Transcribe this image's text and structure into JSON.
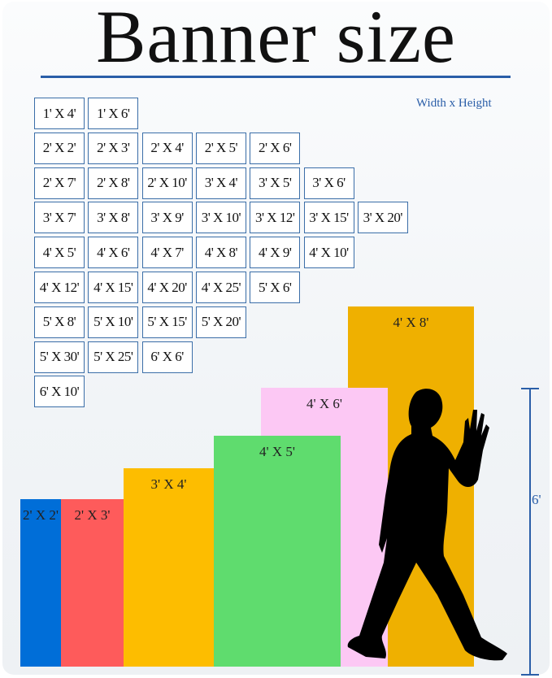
{
  "title": "Banner size",
  "legend": "Width x Height",
  "grid_rows": [
    [
      "1' X 4'",
      "1' X 6'"
    ],
    [
      "2' X 2'",
      "2' X 3'",
      "2' X 4'",
      "2' X 5'",
      "2' X 6'"
    ],
    [
      "2' X 7'",
      "2' X 8'",
      "2' X 10'",
      "3' X 4'",
      "3' X 5'",
      "3' X 6'"
    ],
    [
      "3' X 7'",
      "3' X 8'",
      "3' X 9'",
      "3' X 10'",
      "3' X 12'",
      "3' X 15'",
      "3' X 20'"
    ],
    [
      "4' X 5'",
      "4' X 6'",
      "4' X 7'",
      "4' X 8'",
      "4' X 9'",
      "4' X 10'"
    ],
    [
      "4' X 12'",
      "4' X 15'",
      "4' X 20'",
      "4' X 25'",
      "5' X 6'"
    ],
    [
      "5' X 8'",
      "5' X 10'",
      "5' X 15'",
      "5' X 20'"
    ],
    [
      "5' X 30'",
      "5' X 25'",
      "6' X 6'"
    ],
    [
      "6' X 10'"
    ]
  ],
  "bars": [
    {
      "label": "4' X 8'",
      "color": "#efb000"
    },
    {
      "label": "4' X 6'",
      "color": "#fcc8f4"
    },
    {
      "label": "4' X 5'",
      "color": "#5fdc6e"
    },
    {
      "label": "3' X 4'",
      "color": "#fdbd00"
    },
    {
      "label": "2' X 3'",
      "color": "#fe5b5b"
    },
    {
      "label": "2' X 2'",
      "color": "#006ed8"
    }
  ],
  "measure_label": "6'",
  "accent_color": "#2a5ea8"
}
